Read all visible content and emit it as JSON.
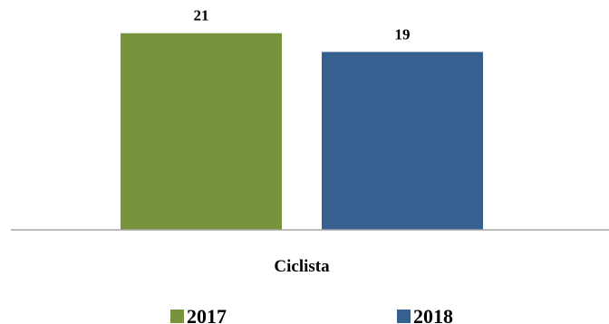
{
  "chart_data": {
    "type": "bar",
    "categories": [
      "Ciclista"
    ],
    "series": [
      {
        "name": "2017",
        "values": [
          21
        ],
        "color": "#77933C"
      },
      {
        "name": "2018",
        "values": [
          19
        ],
        "color": "#36608F"
      }
    ],
    "ylim": [
      0,
      23
    ],
    "data_labels": true,
    "grid": false,
    "legend_position": "bottom",
    "axis_color": "#A6A6A6"
  }
}
